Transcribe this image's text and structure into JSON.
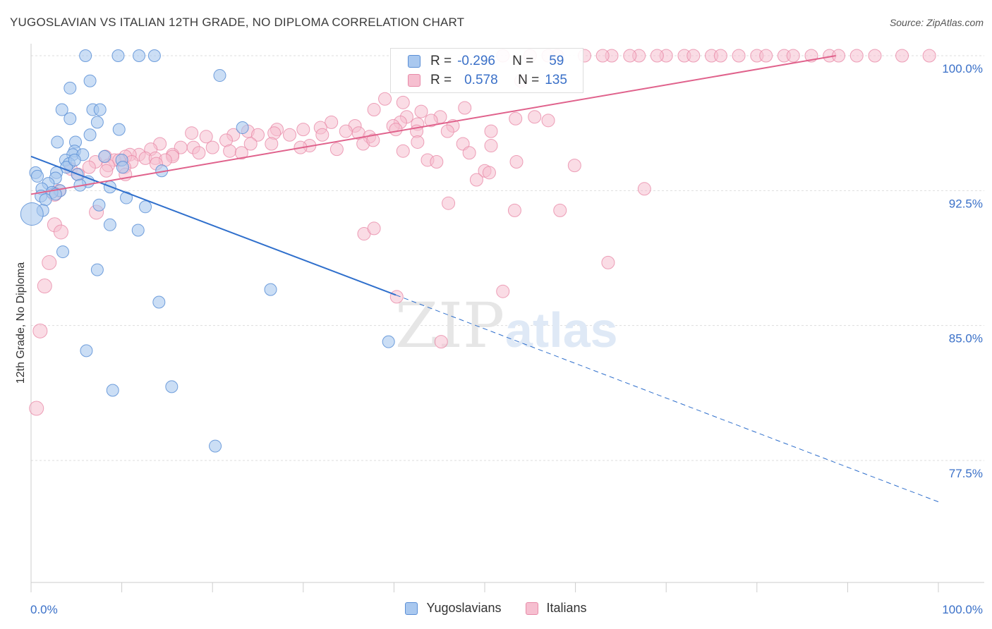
{
  "title": "YUGOSLAVIAN VS ITALIAN 12TH GRADE, NO DIPLOMA CORRELATION CHART",
  "source": "Source: ZipAtlas.com",
  "watermark": {
    "zip": "ZIP",
    "atlas": "atlas"
  },
  "legend": {
    "rows": [
      {
        "r_label": "R =",
        "r_value": "-0.296",
        "n_label": "N =",
        "n_value": "59"
      },
      {
        "r_label": "R =",
        "r_value": "0.578",
        "n_label": "N =",
        "n_value": "135"
      }
    ]
  },
  "colors": {
    "yugoslavians_fill": "#a9c8ef",
    "yugoslavians_stroke": "#5b8fd6",
    "yugoslavians_line": "#2f6fcc",
    "italians_fill": "#f6bfd0",
    "italians_stroke": "#e88aa8",
    "italians_line": "#e0628c",
    "tick_label": "#3a70c8",
    "grid": "#dddddd"
  },
  "chart_data": {
    "type": "scatter",
    "title": "YUGOSLAVIAN VS ITALIAN 12TH GRADE, NO DIPLOMA CORRELATION CHART",
    "xlabel": "",
    "ylabel": "12th Grade, No Diploma",
    "xlim": [
      0,
      100
    ],
    "ylim": [
      70.5,
      101
    ],
    "x_tick_labels": [
      "0.0%",
      "100.0%"
    ],
    "y_ticks": [
      77.5,
      85.0,
      92.5,
      100.0
    ],
    "y_tick_labels": [
      "77.5%",
      "85.0%",
      "92.5%",
      "100.0%"
    ],
    "grid": true,
    "legend_position": "bottom",
    "series": [
      {
        "name": "Yugoslavians",
        "r": -0.296,
        "n": 59,
        "trend": {
          "x0": 0,
          "y0": 94.4,
          "x1": 40.2,
          "y1": 86.7,
          "dash_to_x": 100,
          "dash_to_y": 75.2
        },
        "points": [
          [
            6.0,
            100.0
          ],
          [
            9.6,
            100.0
          ],
          [
            11.9,
            100.0
          ],
          [
            13.6,
            100.0
          ],
          [
            20.8,
            98.9
          ],
          [
            6.5,
            98.6
          ],
          [
            4.3,
            98.2
          ],
          [
            3.4,
            97.0
          ],
          [
            6.8,
            97.0
          ],
          [
            7.6,
            97.0
          ],
          [
            4.3,
            96.5
          ],
          [
            7.3,
            96.3
          ],
          [
            23.3,
            96.0
          ],
          [
            9.7,
            95.9
          ],
          [
            6.5,
            95.6
          ],
          [
            2.9,
            95.2
          ],
          [
            4.9,
            95.2
          ],
          [
            4.8,
            94.7
          ],
          [
            4.6,
            94.5
          ],
          [
            5.7,
            94.5
          ],
          [
            8.1,
            94.4
          ],
          [
            3.8,
            94.2
          ],
          [
            10.0,
            94.2
          ],
          [
            4.2,
            94.0
          ],
          [
            3.9,
            93.8
          ],
          [
            10.1,
            93.8
          ],
          [
            14.4,
            93.6
          ],
          [
            0.5,
            93.5
          ],
          [
            2.8,
            93.5
          ],
          [
            5.1,
            93.4
          ],
          [
            0.7,
            93.3
          ],
          [
            2.7,
            93.2
          ],
          [
            6.3,
            93.0
          ],
          [
            1.9,
            92.9
          ],
          [
            5.4,
            92.8
          ],
          [
            8.7,
            92.7
          ],
          [
            1.2,
            92.6
          ],
          [
            3.2,
            92.5
          ],
          [
            2.3,
            92.4
          ],
          [
            2.7,
            92.3
          ],
          [
            1.1,
            92.2
          ],
          [
            10.5,
            92.1
          ],
          [
            1.6,
            92.0
          ],
          [
            7.5,
            91.7
          ],
          [
            12.6,
            91.6
          ],
          [
            1.3,
            91.4
          ],
          [
            0.1,
            91.2
          ],
          [
            8.7,
            90.6
          ],
          [
            11.8,
            90.3
          ],
          [
            3.5,
            89.1
          ],
          [
            7.3,
            88.1
          ],
          [
            26.4,
            87.0
          ],
          [
            14.1,
            86.3
          ],
          [
            39.4,
            84.1
          ],
          [
            6.1,
            83.6
          ],
          [
            15.5,
            81.6
          ],
          [
            9.0,
            81.4
          ],
          [
            20.3,
            78.3
          ],
          [
            4.8,
            94.2
          ]
        ]
      },
      {
        "name": "Italians",
        "r": 0.578,
        "n": 135,
        "trend": {
          "x0": 0,
          "y0": 92.3,
          "x1": 88.7,
          "y1": 100.0
        },
        "points": [
          [
            52.0,
            100.0
          ],
          [
            55.0,
            100.0
          ],
          [
            58.0,
            100.0
          ],
          [
            61.0,
            100.0
          ],
          [
            64.0,
            100.0
          ],
          [
            67.0,
            100.0
          ],
          [
            70.0,
            100.0
          ],
          [
            72.0,
            100.0
          ],
          [
            75.0,
            100.0
          ],
          [
            78.0,
            100.0
          ],
          [
            80.0,
            100.0
          ],
          [
            81.0,
            100.0
          ],
          [
            83.0,
            100.0
          ],
          [
            84.0,
            100.0
          ],
          [
            88.0,
            100.0
          ],
          [
            89.0,
            100.0
          ],
          [
            91.0,
            100.0
          ],
          [
            93.0,
            100.0
          ],
          [
            96.0,
            100.0
          ],
          [
            99.0,
            100.0
          ],
          [
            57.0,
            100.0
          ],
          [
            63.0,
            100.0
          ],
          [
            69.0,
            100.0
          ],
          [
            76.0,
            100.0
          ],
          [
            86.0,
            100.0
          ],
          [
            66.0,
            100.0
          ],
          [
            73.0,
            100.0
          ],
          [
            54.0,
            98.6
          ],
          [
            39.0,
            97.6
          ],
          [
            41.0,
            97.4
          ],
          [
            37.8,
            97.0
          ],
          [
            41.4,
            96.6
          ],
          [
            45.1,
            96.6
          ],
          [
            53.4,
            96.5
          ],
          [
            40.7,
            96.3
          ],
          [
            33.1,
            96.3
          ],
          [
            35.7,
            96.1
          ],
          [
            31.9,
            96.0
          ],
          [
            30.0,
            95.9
          ],
          [
            27.1,
            95.9
          ],
          [
            23.9,
            95.8
          ],
          [
            26.8,
            95.7
          ],
          [
            28.5,
            95.6
          ],
          [
            25.0,
            95.6
          ],
          [
            22.3,
            95.6
          ],
          [
            17.7,
            95.7
          ],
          [
            19.3,
            95.5
          ],
          [
            21.5,
            95.3
          ],
          [
            26.5,
            95.1
          ],
          [
            24.2,
            95.1
          ],
          [
            30.7,
            95.0
          ],
          [
            14.2,
            95.1
          ],
          [
            16.5,
            94.9
          ],
          [
            17.9,
            94.9
          ],
          [
            20.0,
            94.9
          ],
          [
            13.2,
            94.8
          ],
          [
            21.9,
            94.7
          ],
          [
            18.5,
            94.6
          ],
          [
            23.2,
            94.6
          ],
          [
            15.6,
            94.5
          ],
          [
            11.9,
            94.5
          ],
          [
            10.9,
            94.5
          ],
          [
            10.4,
            94.4
          ],
          [
            8.2,
            94.4
          ],
          [
            12.6,
            94.3
          ],
          [
            13.7,
            94.3
          ],
          [
            15.6,
            94.4
          ],
          [
            9.2,
            94.2
          ],
          [
            14.8,
            94.2
          ],
          [
            9.7,
            94.2
          ],
          [
            7.1,
            94.1
          ],
          [
            11.1,
            94.1
          ],
          [
            13.8,
            94.0
          ],
          [
            8.5,
            93.9
          ],
          [
            6.4,
            93.8
          ],
          [
            10.3,
            93.8
          ],
          [
            4.4,
            93.7
          ],
          [
            8.3,
            93.6
          ],
          [
            5.2,
            93.4
          ],
          [
            10.4,
            93.4
          ],
          [
            3.1,
            92.5
          ],
          [
            2.6,
            92.3
          ],
          [
            7.2,
            91.3
          ],
          [
            2.6,
            90.6
          ],
          [
            3.3,
            90.2
          ],
          [
            2.0,
            88.5
          ],
          [
            1.5,
            87.2
          ],
          [
            1.0,
            84.7
          ],
          [
            0.6,
            80.4
          ],
          [
            47.8,
            97.1
          ],
          [
            43.0,
            96.9
          ],
          [
            44.1,
            96.4
          ],
          [
            42.6,
            96.2
          ],
          [
            39.9,
            96.1
          ],
          [
            46.5,
            96.1
          ],
          [
            40.2,
            95.9
          ],
          [
            34.7,
            95.8
          ],
          [
            36.1,
            95.7
          ],
          [
            37.3,
            95.5
          ],
          [
            42.5,
            95.8
          ],
          [
            45.9,
            95.8
          ],
          [
            50.7,
            95.8
          ],
          [
            32.1,
            95.6
          ],
          [
            36.6,
            95.1
          ],
          [
            29.7,
            94.9
          ],
          [
            33.7,
            94.8
          ],
          [
            42.6,
            95.2
          ],
          [
            47.6,
            95.1
          ],
          [
            50.7,
            95.0
          ],
          [
            41.0,
            94.7
          ],
          [
            37.7,
            95.3
          ],
          [
            43.7,
            94.2
          ],
          [
            44.7,
            94.1
          ],
          [
            48.3,
            94.6
          ],
          [
            57.0,
            96.4
          ],
          [
            50.0,
            93.6
          ],
          [
            50.5,
            93.5
          ],
          [
            53.5,
            94.1
          ],
          [
            49.1,
            93.1
          ],
          [
            46.0,
            91.8
          ],
          [
            53.3,
            91.4
          ],
          [
            58.3,
            91.4
          ],
          [
            59.9,
            93.9
          ],
          [
            67.6,
            92.6
          ],
          [
            63.6,
            88.5
          ],
          [
            36.7,
            90.1
          ],
          [
            37.8,
            90.4
          ],
          [
            40.3,
            86.6
          ],
          [
            52.0,
            86.9
          ],
          [
            45.2,
            84.1
          ],
          [
            55.5,
            96.6
          ]
        ]
      }
    ]
  },
  "bottom_legend": [
    {
      "label": "Yugoslavians"
    },
    {
      "label": "Italians"
    }
  ]
}
